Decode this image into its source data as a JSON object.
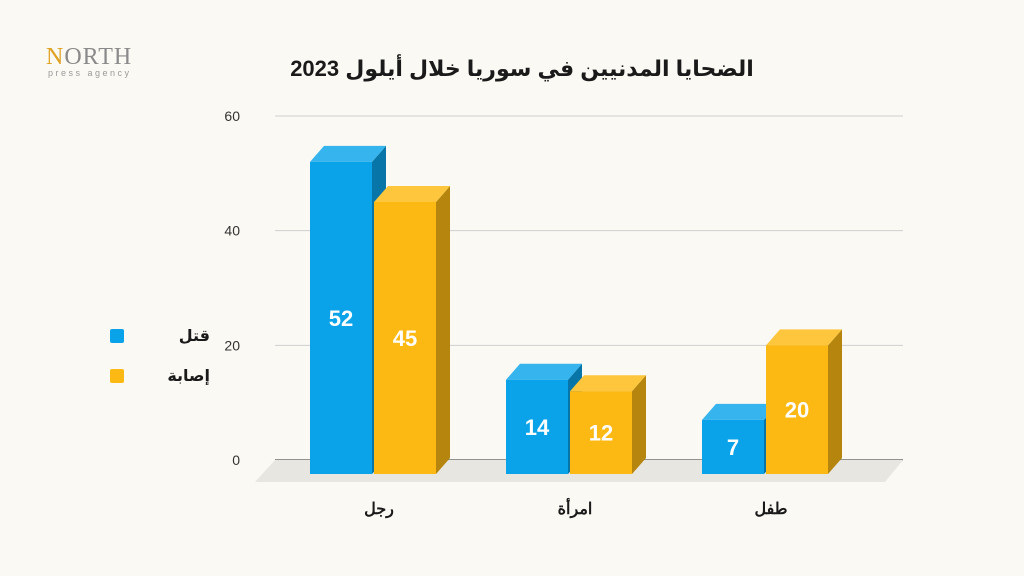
{
  "logo": {
    "word_first": "N",
    "word_rest": "ORTH",
    "tagline": "press agency"
  },
  "chart_data": {
    "type": "bar",
    "title": "الضحايا المدنيين في سوريا خلال أيلول 2023",
    "categories": [
      "رجل",
      "امرأة",
      "طفل"
    ],
    "series": [
      {
        "name": "قتل",
        "values": [
          52,
          14,
          7
        ],
        "color": "#0aa3ea"
      },
      {
        "name": "إصابة",
        "values": [
          45,
          12,
          20
        ],
        "color": "#fdb913"
      }
    ],
    "yticks": [
      0,
      20,
      40,
      60
    ],
    "ylim": [
      0,
      60
    ],
    "grid": true,
    "legend_position": "left"
  }
}
